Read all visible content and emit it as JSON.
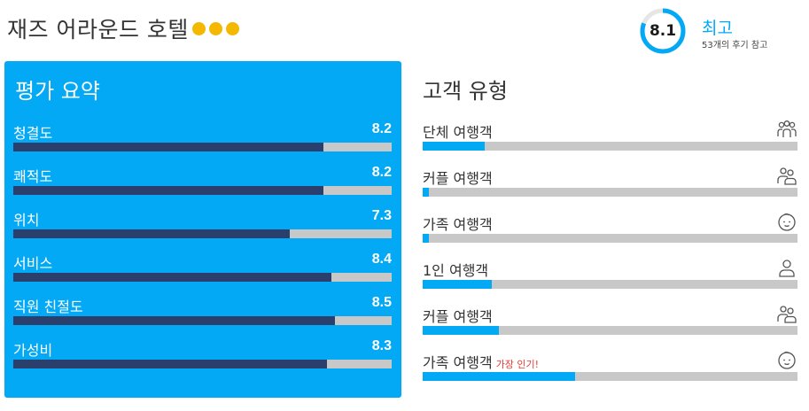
{
  "colors": {
    "accent": "#03a9f4",
    "panel_bg": "#03a9f4",
    "bar_dark": "#2a3f6b",
    "bar_track": "#c8c8c8",
    "star": "#f5b800",
    "badge_red": "#e53935"
  },
  "header": {
    "hotel_name": "재즈 어라운드 호텔",
    "star_count": 3,
    "score": "8.1",
    "score_fraction": 0.81,
    "score_word": "최고",
    "review_count": "53개의 후기 참고"
  },
  "summary": {
    "title": "평가 요약",
    "items": [
      {
        "label": "청결도",
        "value": "8.2",
        "fraction": 0.82
      },
      {
        "label": "쾌적도",
        "value": "8.2",
        "fraction": 0.82
      },
      {
        "label": "위치",
        "value": "7.3",
        "fraction": 0.73
      },
      {
        "label": "서비스",
        "value": "8.4",
        "fraction": 0.84
      },
      {
        "label": "직원 친절도",
        "value": "8.5",
        "fraction": 0.85
      },
      {
        "label": "가성비",
        "value": "8.3",
        "fraction": 0.83
      }
    ]
  },
  "traveler_types": {
    "title": "고객 유형",
    "items": [
      {
        "label": "단체 여행객",
        "badge": "",
        "icon": "group-icon",
        "fraction": 0.165
      },
      {
        "label": "커플 여행객",
        "badge": "",
        "icon": "couple-icon",
        "fraction": 0.017
      },
      {
        "label": "가족 여행객",
        "badge": "",
        "icon": "family-icon",
        "fraction": 0.017
      },
      {
        "label": "1인 여행객",
        "badge": "",
        "icon": "solo-icon",
        "fraction": 0.184
      },
      {
        "label": "커플 여행객",
        "badge": "",
        "icon": "couple-icon",
        "fraction": 0.203
      },
      {
        "label": "가족 여행객",
        "badge": "가장 인기!",
        "icon": "family-icon",
        "fraction": 0.407
      }
    ]
  }
}
